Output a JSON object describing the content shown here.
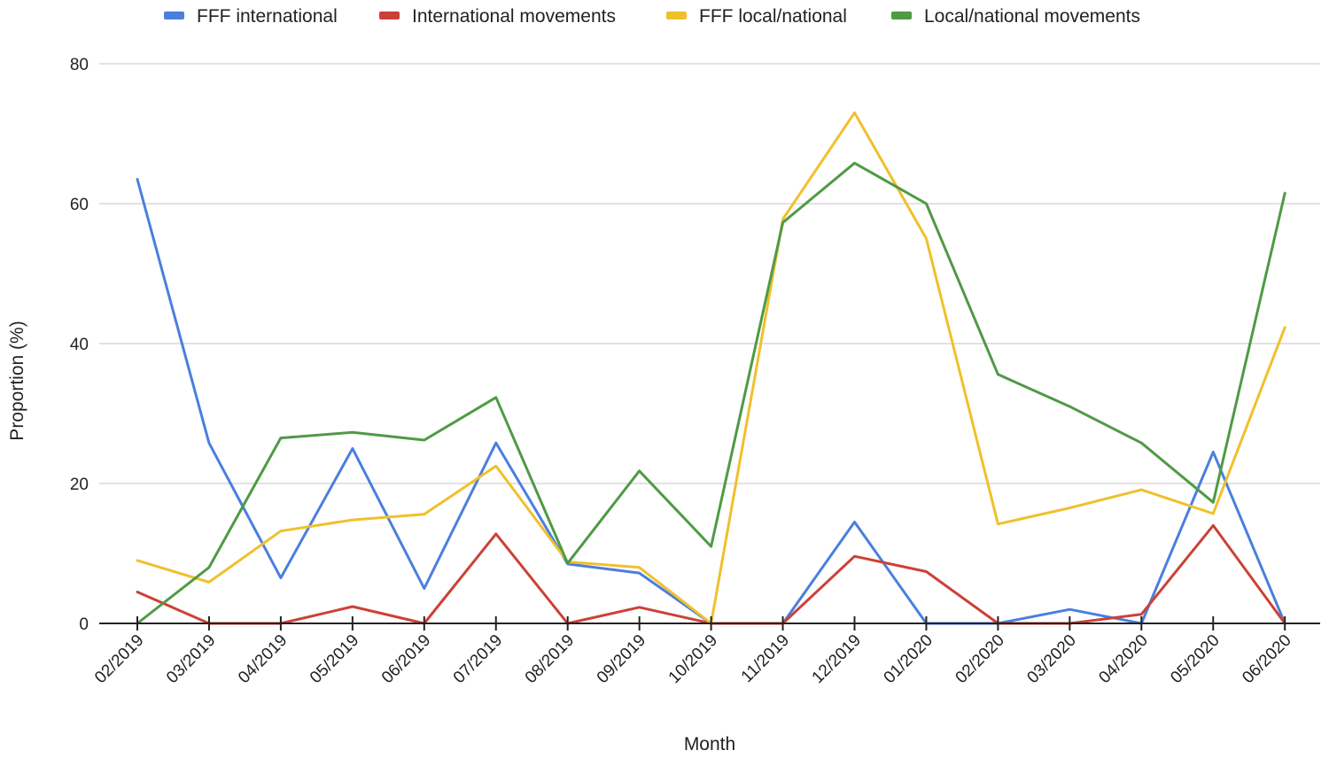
{
  "chart_data": {
    "type": "line",
    "title": "",
    "xlabel": "Month",
    "ylabel": "Proportion (%)",
    "ylim": [
      0,
      80
    ],
    "yticks": [
      0,
      20,
      40,
      60,
      80
    ],
    "grid": true,
    "legend_position": "top",
    "categories": [
      "02/2019",
      "03/2019",
      "04/2019",
      "05/2019",
      "06/2019",
      "07/2019",
      "08/2019",
      "09/2019",
      "10/2019",
      "11/2019",
      "12/2019",
      "01/2020",
      "02/2020",
      "03/2020",
      "04/2020",
      "05/2020",
      "06/2020"
    ],
    "series": [
      {
        "name": "FFF international",
        "color": "#4a7fde",
        "values": [
          63.5,
          25.8,
          6.5,
          25.0,
          5.0,
          25.8,
          8.5,
          7.2,
          0,
          0,
          14.5,
          0,
          0,
          2.0,
          0,
          24.5,
          0
        ]
      },
      {
        "name": "International movements",
        "color": "#cc4137",
        "values": [
          4.5,
          0,
          0,
          2.4,
          0,
          12.8,
          0,
          2.3,
          0,
          0,
          9.6,
          7.4,
          0,
          0,
          1.3,
          14.0,
          0
        ]
      },
      {
        "name": "FFF local/national",
        "color": "#f0c02c",
        "values": [
          9.0,
          5.9,
          13.2,
          14.8,
          15.6,
          22.5,
          8.8,
          8.0,
          0,
          57.8,
          73.0,
          55.0,
          14.2,
          16.5,
          19.1,
          15.7,
          42.3
        ]
      },
      {
        "name": "Local/national movements",
        "color": "#4f9a45",
        "values": [
          0,
          8.0,
          26.5,
          27.3,
          26.2,
          32.3,
          8.6,
          21.8,
          11.0,
          57.3,
          65.8,
          60.0,
          35.6,
          31.0,
          25.8,
          17.3,
          61.5
        ]
      }
    ]
  }
}
